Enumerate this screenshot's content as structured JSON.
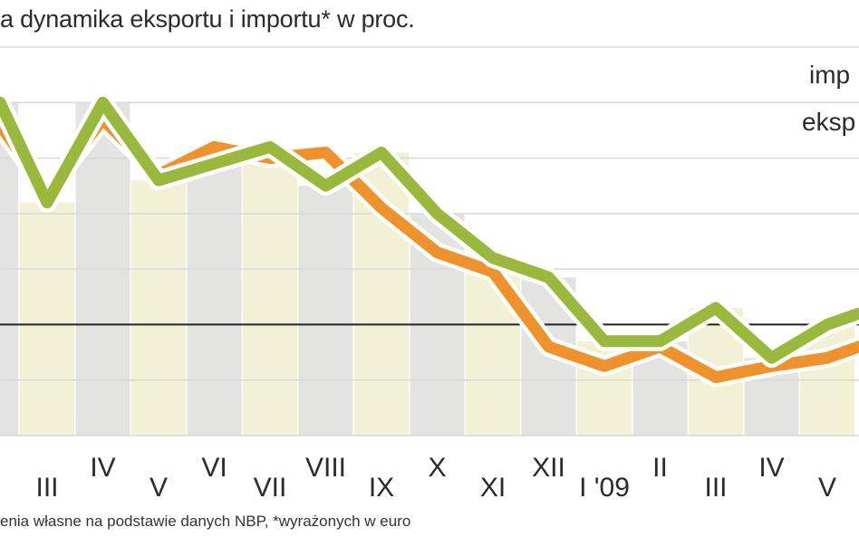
{
  "title": "a dynamika eksportu i importu* w proc.",
  "source": "enia własne na podstawie danych NBP, *wyrażonych w euro",
  "colors": {
    "import": "#f0922b",
    "export": "#9ab93c",
    "bar_gray": "#e3e3e1",
    "bar_yellow": "#f2f1d6",
    "grid": "#d8d8d8",
    "zero_line": "#222222"
  },
  "chart_data": {
    "type": "line",
    "title": "a dynamika eksportu i importu* w proc.",
    "categories": [
      "III",
      "IV",
      "V",
      "VI",
      "VII",
      "VIII",
      "IX",
      "X",
      "XI",
      "XII",
      "I '09",
      "II",
      "III",
      "IV",
      "V"
    ],
    "series": [
      {
        "name": "imp",
        "values": [
          24,
          37,
          27,
          32,
          30,
          31,
          21,
          13,
          9.5,
          -4,
          -7.5,
          -4,
          -9.5,
          -7.5,
          -6
        ]
      },
      {
        "name": "eksp",
        "values": [
          22,
          40,
          26,
          29,
          32,
          25,
          31,
          20,
          12,
          8.5,
          -3,
          -3,
          3,
          -6,
          0
        ]
      }
    ],
    "y_start": 40,
    "x_start_value": 0,
    "ylim": [
      -20,
      50
    ],
    "grid": true,
    "legend": "top-right"
  },
  "legend": {
    "import_label": "imp",
    "export_label": "eksp"
  }
}
